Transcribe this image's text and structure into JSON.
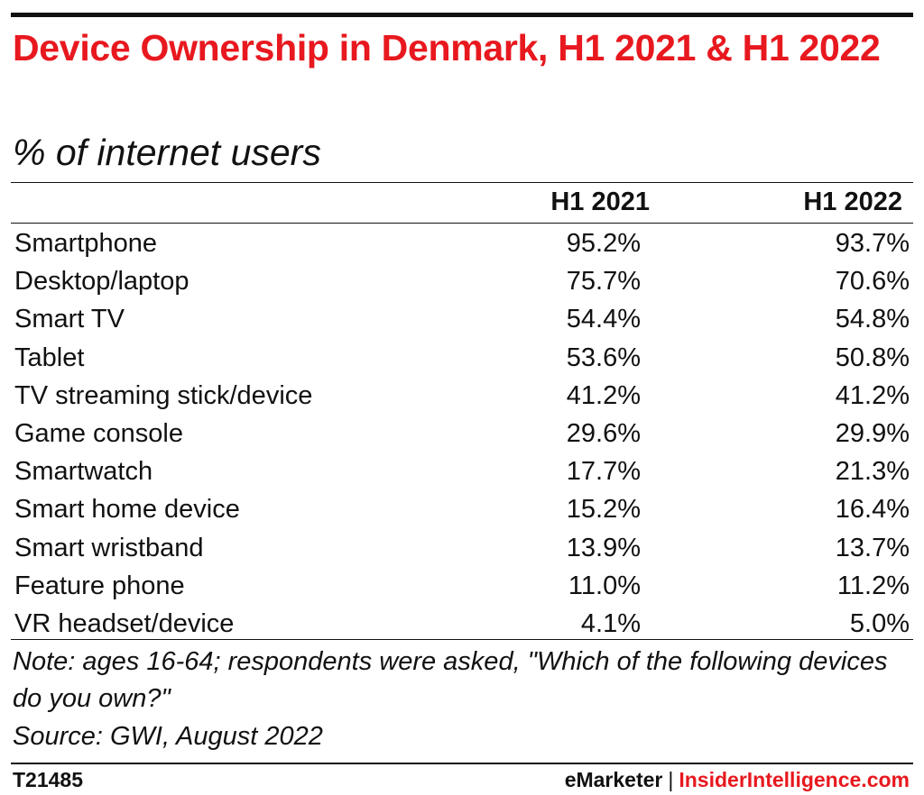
{
  "title": "Device Ownership in Denmark, H1 2021 & H1 2022",
  "subtitle": "% of internet users",
  "colors": {
    "title": "#e8181f",
    "text": "#111111",
    "brand_accent": "#e8181f"
  },
  "chart_data": {
    "type": "table",
    "title": "Device Ownership in Denmark, H1 2021 & H1 2022",
    "subtitle": "% of internet users",
    "columns": [
      "H1 2021",
      "H1 2022"
    ],
    "rows": [
      {
        "label": "Smartphone",
        "values": [
          "95.2%",
          "93.7%"
        ]
      },
      {
        "label": "Desktop/laptop",
        "values": [
          "75.7%",
          "70.6%"
        ]
      },
      {
        "label": "Smart TV",
        "values": [
          "54.4%",
          "54.8%"
        ]
      },
      {
        "label": "Tablet",
        "values": [
          "53.6%",
          "50.8%"
        ]
      },
      {
        "label": "TV streaming stick/device",
        "values": [
          "41.2%",
          "41.2%"
        ]
      },
      {
        "label": "Game console",
        "values": [
          "29.6%",
          "29.9%"
        ]
      },
      {
        "label": "Smartwatch",
        "values": [
          "17.7%",
          "21.3%"
        ]
      },
      {
        "label": "Smart home device",
        "values": [
          "15.2%",
          "16.4%"
        ]
      },
      {
        "label": "Smart wristband",
        "values": [
          "13.9%",
          "13.7%"
        ]
      },
      {
        "label": "Feature phone",
        "values": [
          "11.0%",
          "11.2%"
        ]
      },
      {
        "label": "VR headset/device",
        "values": [
          "4.1%",
          "5.0%"
        ]
      }
    ]
  },
  "note": "Note: ages 16-64; respondents were asked, \"Which of the following devices do you own?\"",
  "source": "Source: GWI, August 2022",
  "footer": {
    "id": "T21485",
    "brand_left": "eMarketer",
    "separator": "|",
    "brand_right": "InsiderIntelligence.com"
  }
}
